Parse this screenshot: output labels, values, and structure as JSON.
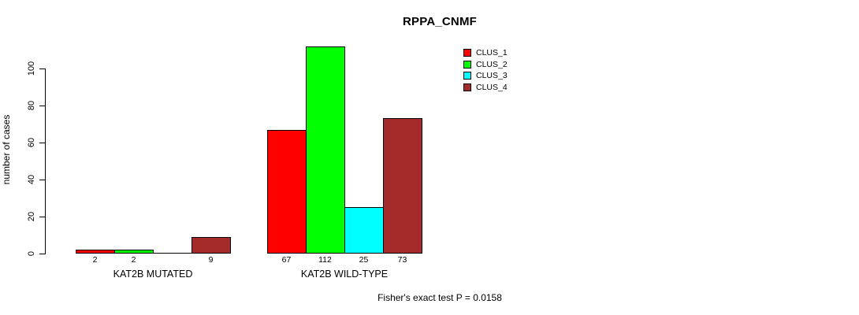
{
  "title": "RPPA_CNMF",
  "y_axis": {
    "label": "number of cases",
    "ticks": [
      "0",
      "20",
      "40",
      "60",
      "80",
      "100"
    ]
  },
  "legend": {
    "items": [
      {
        "label": "CLUS_1",
        "color": "#FF0000"
      },
      {
        "label": "CLUS_2",
        "color": "#00FF00"
      },
      {
        "label": "CLUS_3",
        "color": "#00FFFF"
      },
      {
        "label": "CLUS_4",
        "color": "#A52A2A"
      }
    ]
  },
  "footer": "Fisher's exact test P = 0.0158",
  "chart_data": {
    "type": "bar",
    "title": "RPPA_CNMF",
    "ylabel": "number of cases",
    "ylim": [
      0,
      100
    ],
    "yticks": [
      0,
      20,
      40,
      60,
      80,
      100
    ],
    "grid": false,
    "legend_position": "top-right",
    "series_names": [
      "CLUS_1",
      "CLUS_2",
      "CLUS_3",
      "CLUS_4"
    ],
    "series_colors": [
      "#FF0000",
      "#00FF00",
      "#00FFFF",
      "#A52A2A"
    ],
    "groups": [
      {
        "label": "KAT2B MUTATED",
        "values": [
          2,
          2,
          0,
          9
        ],
        "bar_labels": [
          "2",
          "2",
          "",
          "9"
        ]
      },
      {
        "label": "KAT2B WILD-TYPE",
        "values": [
          67,
          112,
          25,
          73
        ],
        "bar_labels": [
          "67",
          "112",
          "25",
          "73"
        ]
      }
    ],
    "annotation": "Fisher's exact test P = 0.0158"
  }
}
